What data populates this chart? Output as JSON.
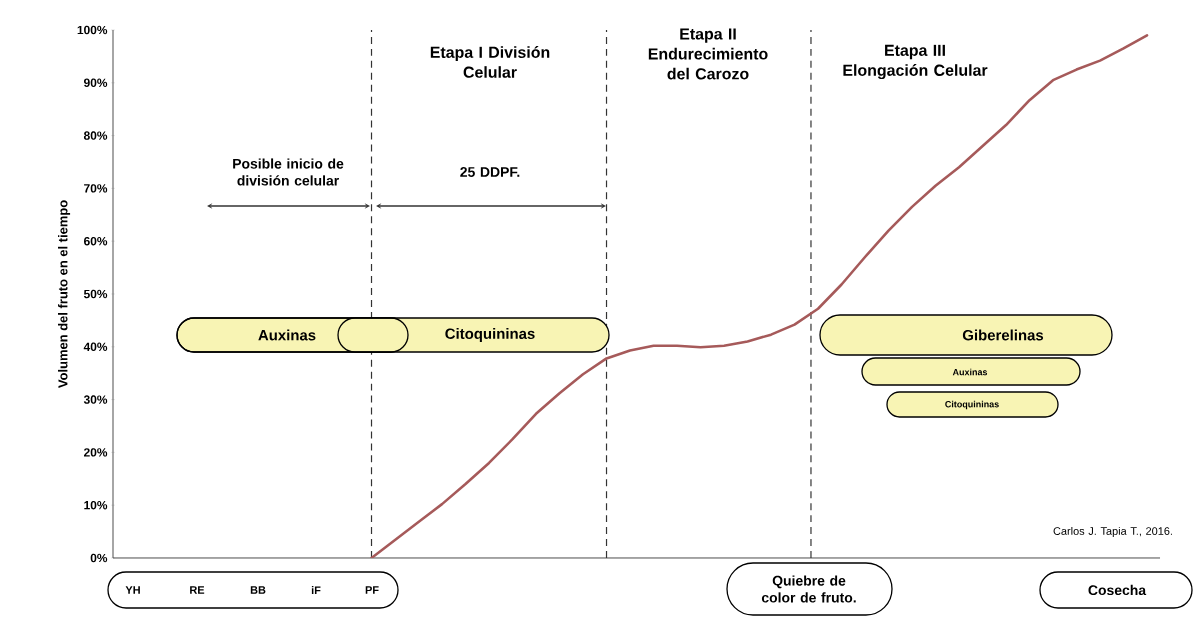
{
  "chart_data": {
    "type": "line",
    "ylabel": "Volumen del fruto en el tiempo",
    "categories": [
      null,
      null,
      null,
      null,
      null,
      null,
      null,
      null,
      null,
      null,
      null,
      null,
      null,
      null,
      null,
      null,
      null,
      null,
      null,
      null,
      null,
      null,
      null,
      null,
      null,
      null,
      null,
      null,
      null,
      null,
      null,
      null,
      null,
      null,
      null,
      null,
      null,
      null,
      null,
      null,
      null,
      null,
      null,
      null,
      null
    ],
    "series": [
      {
        "color": "#a65a5a",
        "values": [
          null,
          null,
          null,
          null,
          null,
          null,
          null,
          null,
          null,
          null,
          null,
          0,
          3.4,
          6.8,
          10.2,
          14,
          18,
          22.5,
          27.3,
          31.2,
          34.8,
          37.8,
          39.3,
          40.2,
          40.2,
          39.9,
          40.2,
          41,
          42.3,
          44.2,
          47.2,
          51.8,
          57,
          62,
          66.5,
          70.5,
          74,
          78,
          82,
          86.7,
          90.5,
          92.5,
          94.2,
          96.5,
          99
        ]
      }
    ],
    "ylim": [
      0,
      100
    ],
    "yticks": [
      {
        "value": 0,
        "label": "0%"
      },
      {
        "value": 10,
        "label": "10%"
      },
      {
        "value": 20,
        "label": "20%"
      },
      {
        "value": 30,
        "label": "30%"
      },
      {
        "value": 40,
        "label": "40%"
      },
      {
        "value": 50,
        "label": "50%"
      },
      {
        "value": 60,
        "label": "60%"
      },
      {
        "value": 70,
        "label": "70%"
      },
      {
        "value": 80,
        "label": "80%"
      },
      {
        "value": 90,
        "label": "90%"
      },
      {
        "value": 100,
        "label": "100%"
      }
    ],
    "annotations": [
      "Etapa I División Celular",
      "Etapa II Endurecimiento del Carozo",
      "Etapa III Elongación Celular",
      "Posible inicio de división celular",
      "25 DDPF.",
      "Auxinas",
      "Citoquininas",
      "Giberelinas",
      "Auxinas",
      "Citoquininas",
      "YH",
      "RE",
      "BB",
      "iF",
      "PF",
      "Quiebre de color de fruto.",
      "Cosecha",
      "Carlos J. Tapia T., 2016."
    ],
    "tick_labels": "y",
    "grid": false,
    "marker": "none",
    "line_style": "solid"
  }
}
